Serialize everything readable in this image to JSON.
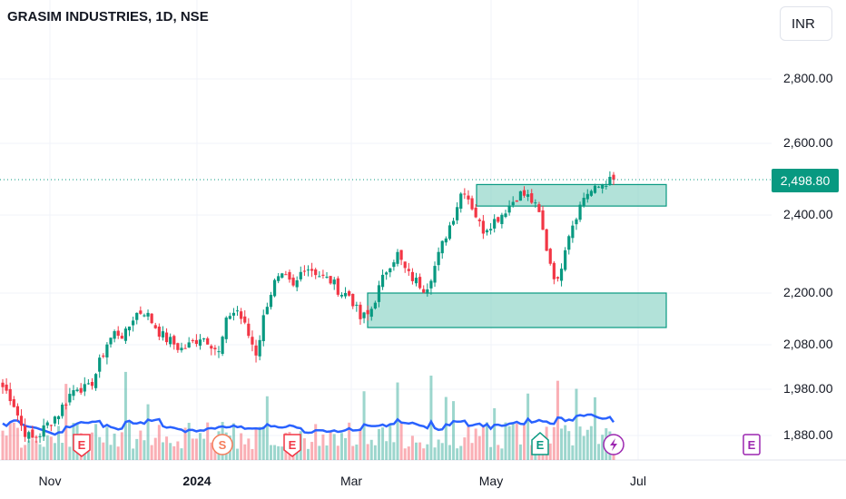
{
  "header": {
    "title": "GRASIM INDUSTRIES, 1D, NSE",
    "currency": "INR"
  },
  "last_price": "2,498.80",
  "colors": {
    "up": "#089981",
    "down": "#f23645",
    "zone_fill": "#7fcfc0",
    "zone_stroke": "#089981",
    "ma": "#2962ff"
  },
  "event_icons": [
    {
      "label": "E",
      "type": "earnings",
      "color": "#f23645"
    },
    {
      "label": "S",
      "type": "split",
      "color": "#f57c5a"
    },
    {
      "label": "E",
      "type": "earnings",
      "color": "#f23645"
    },
    {
      "label": "E",
      "type": "earnings",
      "color": "#089981"
    },
    {
      "label": "",
      "type": "lightning",
      "color": "#9c27b0"
    },
    {
      "label": "E",
      "type": "earnings-upcoming",
      "color": "#9c27b0"
    }
  ],
  "chart_data": {
    "type": "candlestick",
    "y_ticks": [
      "2,800.00",
      "2,600.00",
      "2,400.00",
      "2,200.00",
      "2,080.00",
      "1,980.00",
      "1,880.00"
    ],
    "x_ticks": [
      {
        "label": "Nov",
        "bold": false
      },
      {
        "label": "2024",
        "bold": true
      },
      {
        "label": "Mar",
        "bold": false
      },
      {
        "label": "May",
        "bold": false
      },
      {
        "label": "Jul",
        "bold": false
      }
    ],
    "zones": [
      {
        "name": "resistance",
        "low": 2425,
        "high": 2485
      },
      {
        "name": "support",
        "low": 2120,
        "high": 2200
      }
    ],
    "close_anchors": [
      1985,
      1960,
      1900,
      1870,
      1885,
      1910,
      1930,
      1965,
      1990,
      1975,
      2020,
      2080,
      2110,
      2100,
      2150,
      2160,
      2130,
      2100,
      2085,
      2070,
      2080,
      2100,
      2090,
      2060,
      2150,
      2160,
      2110,
      2060,
      2170,
      2230,
      2240,
      2210,
      2270,
      2260,
      2240,
      2230,
      2200,
      2195,
      2140,
      2150,
      2210,
      2270,
      2300,
      2250,
      2230,
      2210,
      2270,
      2340,
      2400,
      2480,
      2420,
      2360,
      2380,
      2400,
      2430,
      2460,
      2450,
      2410,
      2300,
      2220,
      2340,
      2400,
      2460,
      2470,
      2490,
      2498.8
    ]
  }
}
